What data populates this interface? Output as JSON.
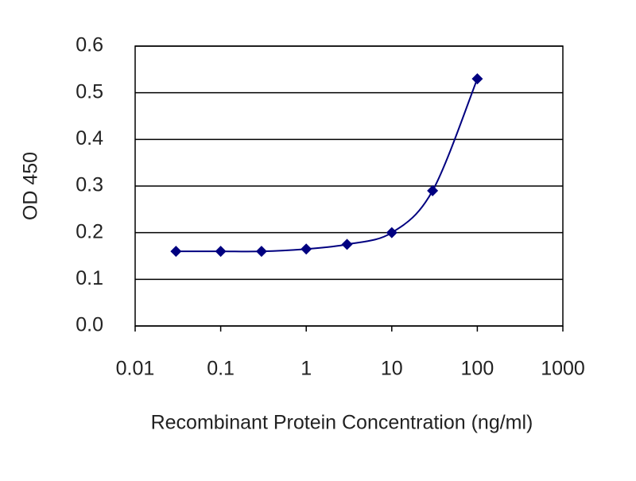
{
  "chart_data": {
    "type": "line",
    "x_label": "Recombinant Protein Concentration (ng/ml)",
    "y_label": "OD 450",
    "x": [
      0.03,
      0.1,
      0.3,
      1,
      3,
      10,
      30,
      100
    ],
    "series": [
      {
        "color": "#000080",
        "values": [
          0.16,
          0.16,
          0.16,
          0.165,
          0.175,
          0.2,
          0.29,
          0.53
        ]
      }
    ],
    "xlim": [
      0.01,
      1000
    ],
    "xticks": [
      0.01,
      0.1,
      1,
      10,
      100,
      1000
    ],
    "xscale": "log",
    "ylim": [
      0,
      0.6
    ],
    "yticks": [
      {
        "value": 0,
        "label": "0.0"
      },
      0.1,
      0.2,
      0.3,
      0.4,
      0.5,
      0.6
    ],
    "grid": true
  }
}
